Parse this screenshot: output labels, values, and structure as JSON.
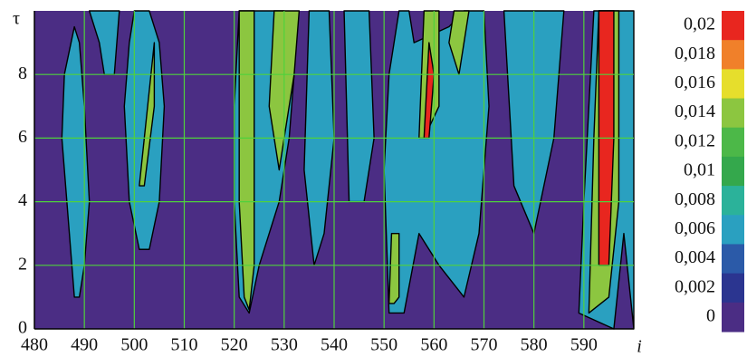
{
  "chart_data": {
    "type": "contour",
    "xlabel": "i",
    "ylabel": "τ",
    "xlim": [
      480,
      600
    ],
    "ylim": [
      0,
      10
    ],
    "xticks": [
      480,
      490,
      500,
      510,
      520,
      530,
      540,
      550,
      560,
      570,
      580,
      590
    ],
    "yticks": [
      0,
      2,
      4,
      6,
      8
    ],
    "grid": true,
    "background_level": 0,
    "colorbar": {
      "ticks": [
        {
          "value": 0.02,
          "label": "0,02"
        },
        {
          "value": 0.018,
          "label": "0,018"
        },
        {
          "value": 0.016,
          "label": "0,016"
        },
        {
          "value": 0.014,
          "label": "0,014"
        },
        {
          "value": 0.012,
          "label": "0,012"
        },
        {
          "value": 0.01,
          "label": "0,01"
        },
        {
          "value": 0.008,
          "label": "0,008"
        },
        {
          "value": 0.006,
          "label": "0,006"
        },
        {
          "value": 0.004,
          "label": "0,004"
        },
        {
          "value": 0.002,
          "label": "0,002"
        },
        0
      ],
      "colors": [
        "#e8261f",
        "#f0802a",
        "#e6de2c",
        "#8cc640",
        "#4cb848",
        "#34a84c",
        "#2bb29a",
        "#2aa0c0",
        "#2b5aa8",
        "#2b3590",
        "#4b2d84"
      ]
    },
    "regions": [
      {
        "level": 0.006,
        "i": [
          488,
          487,
          485.5,
          486,
          488,
          489,
          490,
          491,
          490,
          489
        ],
        "tau": [
          1,
          3,
          6,
          8,
          9.5,
          9,
          7,
          4,
          2,
          1
        ]
      },
      {
        "level": 0.006,
        "i": [
          491,
          493,
          494,
          496,
          497
        ],
        "tau": [
          10,
          9,
          8,
          8,
          10
        ]
      },
      {
        "level": 0.006,
        "i": [
          501,
          499,
          498,
          499,
          500,
          503,
          505,
          506,
          505,
          503
        ],
        "tau": [
          2.5,
          4,
          7,
          9,
          10,
          10,
          9,
          7,
          4,
          2.5
        ]
      },
      {
        "level": 0.014,
        "i": [
          501,
          502,
          504,
          504,
          502
        ],
        "tau": [
          4.5,
          6,
          9,
          7,
          4.5
        ]
      },
      {
        "level": 0.006,
        "i": [
          521,
          520,
          520,
          521,
          526,
          530,
          532,
          531,
          529,
          525,
          523
        ],
        "tau": [
          1,
          4,
          7,
          10,
          10,
          10,
          8,
          6,
          4,
          2,
          0.5
        ]
      },
      {
        "level": 0.014,
        "i": [
          522,
          521,
          521,
          524,
          524,
          523
        ],
        "tau": [
          1,
          4,
          10,
          10,
          2,
          0.6
        ]
      },
      {
        "level": 0.014,
        "i": [
          527,
          528,
          531,
          533,
          532,
          529
        ],
        "tau": [
          7,
          10,
          10,
          10,
          8,
          5
        ]
      },
      {
        "level": 0.006,
        "i": [
          534,
          535,
          537,
          539,
          540,
          538,
          536
        ],
        "tau": [
          5,
          10,
          10,
          10,
          6,
          3,
          2
        ]
      },
      {
        "level": 0.006,
        "i": [
          543,
          542,
          545,
          547,
          548,
          546
        ],
        "tau": [
          4,
          10,
          10,
          10,
          6,
          4
        ]
      },
      {
        "level": 0.006,
        "i": [
          551,
          550,
          551,
          553,
          555,
          556,
          563,
          566,
          570,
          571,
          569,
          566,
          561,
          557,
          554
        ],
        "tau": [
          0.5,
          5,
          8,
          10,
          10,
          9,
          9.5,
          10,
          10,
          7,
          3,
          1,
          2,
          3,
          0.5
        ]
      },
      {
        "level": 0.014,
        "i": [
          551,
          551.5,
          553,
          553,
          552
        ],
        "tau": [
          0.8,
          3,
          3,
          1,
          0.8
        ]
      },
      {
        "level": 0.014,
        "i": [
          557,
          558,
          560,
          561,
          561,
          558
        ],
        "tau": [
          6,
          10,
          10,
          10,
          7,
          6
        ]
      },
      {
        "level": 0.02,
        "i": [
          558,
          559,
          560,
          559
        ],
        "tau": [
          6,
          9,
          8,
          6
        ]
      },
      {
        "level": 0.014,
        "i": [
          563,
          564,
          566,
          567,
          565
        ],
        "tau": [
          9,
          10,
          10,
          10,
          8
        ]
      },
      {
        "level": 0.006,
        "i": [
          576,
          574,
          578,
          582,
          586,
          584,
          580
        ],
        "tau": [
          4.5,
          10,
          10,
          10,
          10,
          6,
          3
        ]
      },
      {
        "level": 0.006,
        "i": [
          589,
          590,
          592,
          597,
          598,
          600,
          600,
          598,
          596
        ],
        "tau": [
          0.5,
          4,
          10,
          10,
          10,
          10,
          0,
          3,
          0
        ]
      },
      {
        "level": 0.014,
        "i": [
          591,
          592,
          593,
          597,
          597,
          595
        ],
        "tau": [
          0.5,
          6,
          10,
          10,
          4,
          1
        ]
      },
      {
        "level": 0.02,
        "i": [
          593,
          593,
          596,
          596,
          595
        ],
        "tau": [
          2,
          10,
          10,
          6,
          2
        ]
      }
    ]
  }
}
